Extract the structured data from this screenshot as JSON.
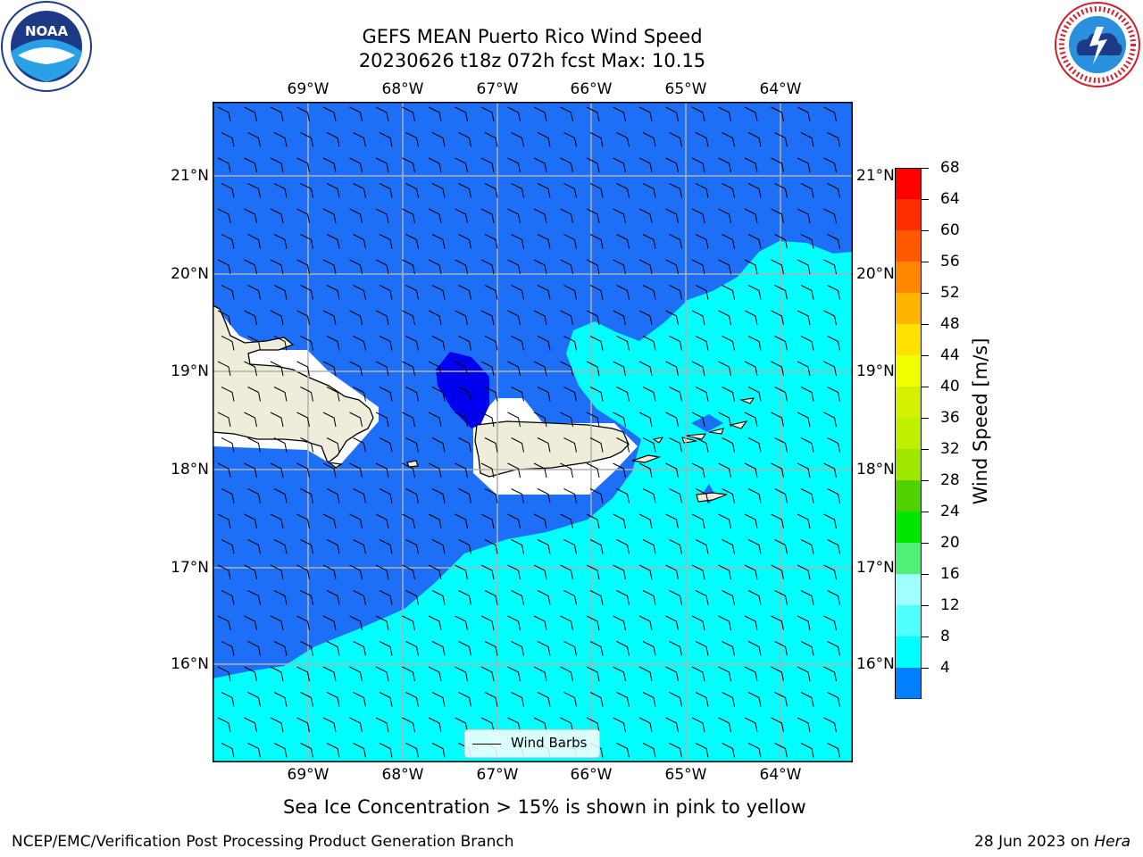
{
  "title": {
    "line1": "GEFS MEAN Puerto Rico Wind Speed",
    "line2": "20230626 t18z 072h fcst   Max: 10.15"
  },
  "logos": {
    "left": {
      "icon": "noaa-logo",
      "text": "NOAA"
    },
    "right": {
      "icon": "nws-logo",
      "text": "NATIONAL WEATHER SERVICE"
    }
  },
  "map": {
    "lon_labels": [
      "69°W",
      "68°W",
      "67°W",
      "66°W",
      "65°W",
      "64°W"
    ],
    "lat_labels": [
      "21°N",
      "20°N",
      "19°N",
      "18°N",
      "17°N",
      "16°N"
    ],
    "land_color": "#efedd9",
    "legend_label": "Wind Barbs"
  },
  "colorbar": {
    "label": "Wind Speed [m/s]",
    "ticks": [
      "68",
      "64",
      "60",
      "56",
      "52",
      "48",
      "44",
      "40",
      "36",
      "32",
      "28",
      "24",
      "20",
      "16",
      "12",
      "8",
      "4"
    ],
    "colors": [
      "#ff0000",
      "#ff2d00",
      "#ff5a00",
      "#ff8700",
      "#ffb400",
      "#ffe100",
      "#f0ff00",
      "#d2f000",
      "#bef000",
      "#a0e600",
      "#50d200",
      "#00e600",
      "#50f078",
      "#a0ffff",
      "#50ffff",
      "#00ffff",
      "#0080ff"
    ],
    "under_color": "#0000ff"
  },
  "caption": "Sea Ice Concentration > 15% is shown in pink to yellow",
  "footer": {
    "left": "NCEP/EMC/Verification Post Processing Product Generation Branch",
    "date": "28 Jun 2023 on ",
    "machine": "Hera"
  }
}
